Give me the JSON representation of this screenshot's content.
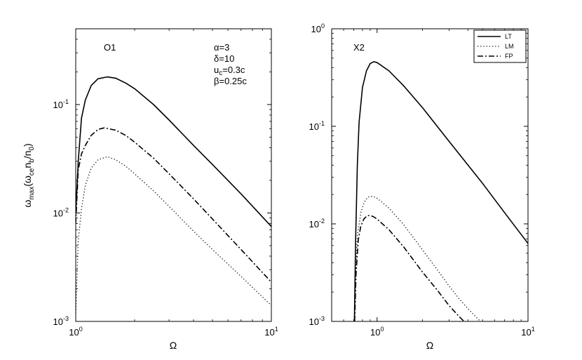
{
  "chart_data": [
    {
      "type": "line",
      "panel_label": "O1",
      "xlabel": "Ω",
      "ylabel_parts": {
        "omega": "ω",
        "max": "max",
        "omega2": "(ω",
        "ce": "ce",
        "n": "n",
        "b": "b",
        "slash_n": "/n",
        "zero": "0",
        "close": ")"
      },
      "xscale": "log",
      "yscale": "log",
      "xlim": [
        1,
        10
      ],
      "ylim": [
        0.001,
        0.5
      ],
      "x_ticks": [
        {
          "value": 1,
          "base": "10",
          "exp": "0"
        },
        {
          "value": 10,
          "base": "10",
          "exp": "1"
        }
      ],
      "y_ticks": [
        {
          "value": 0.001,
          "base": "10",
          "exp": "-3"
        },
        {
          "value": 0.01,
          "base": "10",
          "exp": "-2"
        },
        {
          "value": 0.1,
          "base": "10",
          "exp": "-1"
        }
      ],
      "params": [
        {
          "name": "α",
          "value": "=3"
        },
        {
          "name": "δ",
          "value": "=10"
        },
        {
          "name": "u",
          "sub": "c",
          "value": "=0.3c"
        },
        {
          "name": "β",
          "value": "=0.25c"
        }
      ],
      "series": [
        {
          "key": "LT",
          "style": "solid",
          "x": [
            1.0,
            1.03,
            1.07,
            1.12,
            1.2,
            1.3,
            1.45,
            1.6,
            1.8,
            2.0,
            2.5,
            3.0,
            4.0,
            5.0,
            7.0,
            10.0
          ],
          "y": [
            0.01,
            0.03,
            0.075,
            0.11,
            0.15,
            0.173,
            0.18,
            0.175,
            0.158,
            0.14,
            0.1,
            0.072,
            0.042,
            0.028,
            0.015,
            0.0075
          ]
        },
        {
          "key": "LM",
          "style": "dotted",
          "x": [
            1.0,
            1.03,
            1.07,
            1.12,
            1.2,
            1.3,
            1.45,
            1.6,
            1.8,
            2.0,
            2.5,
            3.0,
            4.0,
            5.0,
            7.0,
            10.0
          ],
          "y": [
            0.0012,
            0.0055,
            0.011,
            0.018,
            0.026,
            0.031,
            0.033,
            0.031,
            0.027,
            0.023,
            0.016,
            0.0115,
            0.0068,
            0.0046,
            0.0026,
            0.0014
          ]
        },
        {
          "key": "FP",
          "style": "dashdot",
          "x": [
            1.0,
            1.03,
            1.07,
            1.12,
            1.2,
            1.3,
            1.4,
            1.6,
            1.8,
            2.0,
            2.5,
            3.0,
            4.0,
            5.0,
            7.0,
            10.0
          ],
          "y": [
            0.008,
            0.025,
            0.035,
            0.042,
            0.052,
            0.059,
            0.061,
            0.058,
            0.052,
            0.045,
            0.032,
            0.023,
            0.0135,
            0.0088,
            0.0046,
            0.0023
          ]
        }
      ]
    },
    {
      "type": "line",
      "panel_label": "X2",
      "xlabel": "Ω",
      "xscale": "log",
      "yscale": "log",
      "xlim": [
        0.5,
        10
      ],
      "ylim": [
        0.001,
        1
      ],
      "x_ticks": [
        {
          "value": 1,
          "base": "10",
          "exp": "0"
        },
        {
          "value": 10,
          "base": "10",
          "exp": "1"
        }
      ],
      "y_ticks": [
        {
          "value": 0.001,
          "base": "10",
          "exp": "-3"
        },
        {
          "value": 0.01,
          "base": "10",
          "exp": "-2"
        },
        {
          "value": 0.1,
          "base": "10",
          "exp": "-1"
        },
        {
          "value": 1,
          "base": "10",
          "exp": "0"
        }
      ],
      "legend": {
        "placement": "top-right",
        "entries": [
          "LT",
          "LM",
          "FP"
        ]
      },
      "series": [
        {
          "key": "LT",
          "style": "solid",
          "x": [
            0.707,
            0.72,
            0.74,
            0.76,
            0.8,
            0.85,
            0.9,
            0.95,
            1.0,
            1.2,
            1.5,
            2.0,
            3.0,
            5.0,
            7.0,
            10.0
          ],
          "y": [
            0.001,
            0.0065,
            0.04,
            0.11,
            0.25,
            0.37,
            0.44,
            0.46,
            0.45,
            0.37,
            0.26,
            0.155,
            0.07,
            0.026,
            0.013,
            0.0063
          ]
        },
        {
          "key": "LM",
          "style": "dotted",
          "x": [
            0.707,
            0.72,
            0.74,
            0.78,
            0.82,
            0.86,
            0.9,
            0.95,
            1.0,
            1.2,
            1.5,
            2.0,
            2.5,
            3.0,
            3.5,
            4.0,
            4.5,
            5.0
          ],
          "y": [
            0.001,
            0.003,
            0.0075,
            0.013,
            0.0165,
            0.0185,
            0.0192,
            0.019,
            0.0183,
            0.0145,
            0.0098,
            0.0054,
            0.0034,
            0.0023,
            0.0017,
            0.00135,
            0.00112,
            0.00095
          ]
        },
        {
          "key": "FP",
          "style": "dashdot",
          "x": [
            0.71,
            0.725,
            0.75,
            0.78,
            0.82,
            0.86,
            0.9,
            0.95,
            1.0,
            1.2,
            1.5,
            2.0,
            2.5,
            3.0,
            3.5,
            3.9
          ],
          "y": [
            0.001,
            0.003,
            0.0068,
            0.0095,
            0.0113,
            0.0121,
            0.0122,
            0.0118,
            0.0112,
            0.0087,
            0.0058,
            0.0032,
            0.0021,
            0.00145,
            0.00112,
            0.00095
          ]
        }
      ]
    }
  ]
}
